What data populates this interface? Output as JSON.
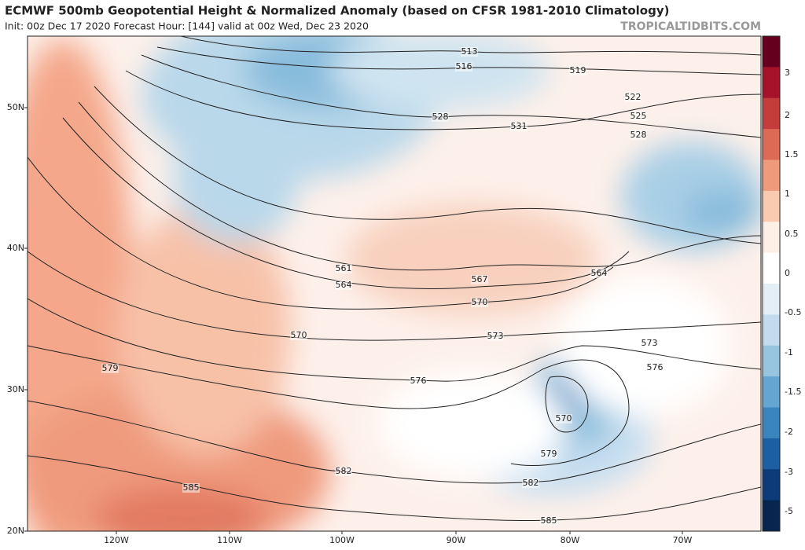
{
  "header": {
    "title": "ECMWF 500mb Geopotential Height & Normalized Anomaly (based on CFSR 1981-2010 Climatology)",
    "subtitle": "Init: 00z Dec 17 2020   Forecast Hour: [144]   valid at 00z Wed, Dec 23 2020",
    "source": "TROPICALTIDBITS.COM"
  },
  "map": {
    "lat_labels": [
      "50N",
      "40N",
      "30N",
      "20N"
    ],
    "lon_labels": [
      "120W",
      "110W",
      "100W",
      "90W",
      "80W",
      "70W"
    ],
    "contour_labels": [
      513,
      516,
      519,
      522,
      525,
      528,
      528,
      531,
      561,
      564,
      564,
      567,
      570,
      570,
      573,
      573,
      576,
      576,
      579,
      570,
      579,
      582,
      582,
      585,
      585
    ]
  },
  "colorbar": {
    "labels": [
      3,
      2,
      1.5,
      1,
      0.5,
      0,
      -0.5,
      -1,
      -1.5,
      -2,
      -3,
      -5
    ]
  }
}
